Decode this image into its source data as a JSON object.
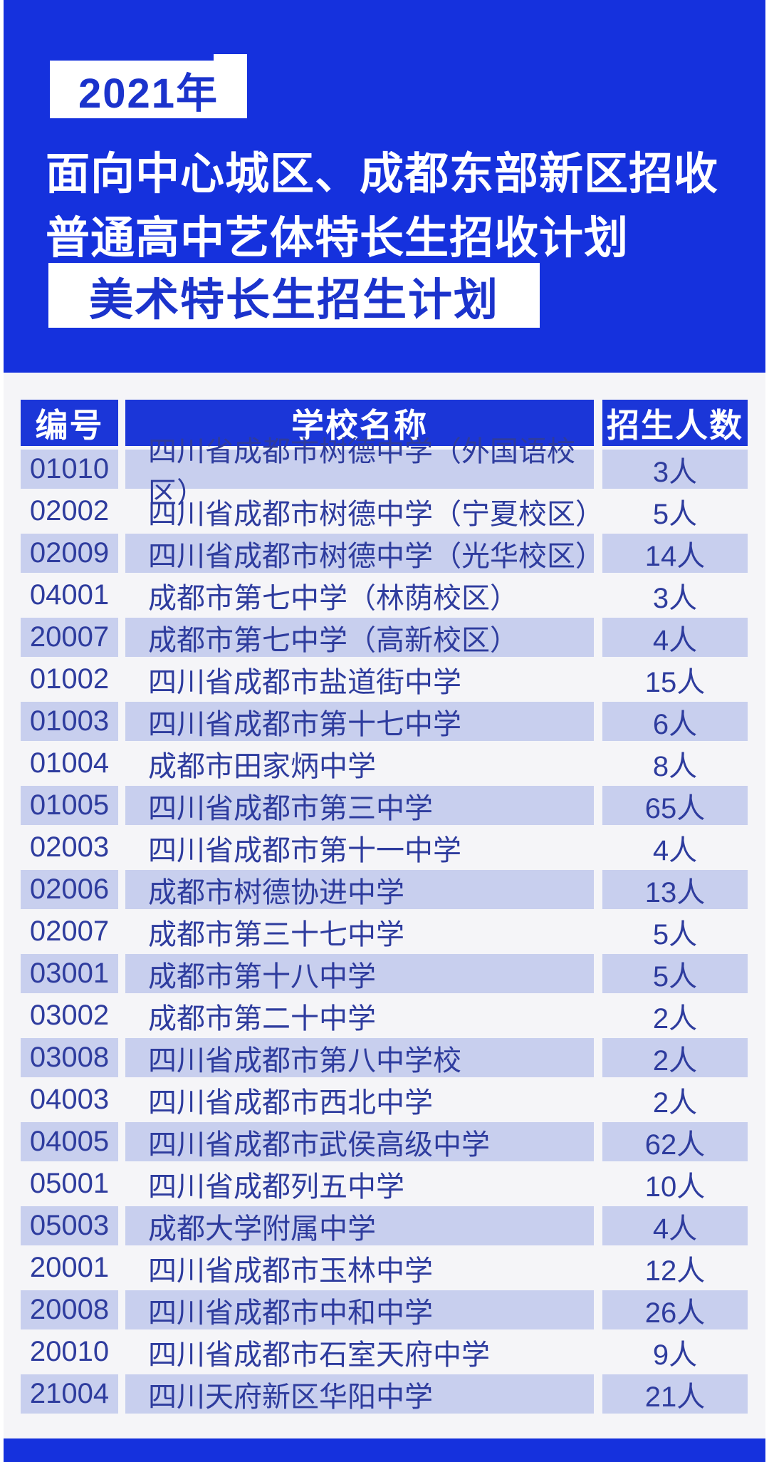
{
  "colors": {
    "hero_blue": "#1531dd",
    "header_cell_blue": "#1b36d8",
    "shaded_row": "#c8cfee",
    "table_text": "#2e3c9e",
    "badge_text_blue": "#1b33cc",
    "content_bg": "#f5f5f8"
  },
  "header": {
    "year_badge": "2021年",
    "title_line1": "面向中心城区、成都东部新区招收",
    "title_line2": "普通高中艺体特长生招收计划",
    "subtitle_badge": "美术特长生招生计划"
  },
  "table": {
    "columns": [
      "编号",
      "学校名称",
      "招生人数"
    ],
    "rows": [
      {
        "code": "01010",
        "school": "四川省成都市树德中学（外国语校区）",
        "count": "3人"
      },
      {
        "code": "02002",
        "school": "四川省成都市树德中学（宁夏校区）",
        "count": "5人"
      },
      {
        "code": "02009",
        "school": "四川省成都市树德中学（光华校区）",
        "count": "14人"
      },
      {
        "code": "04001",
        "school": "成都市第七中学（林荫校区）",
        "count": "3人"
      },
      {
        "code": "20007",
        "school": "成都市第七中学（高新校区）",
        "count": "4人"
      },
      {
        "code": "01002",
        "school": "四川省成都市盐道街中学",
        "count": "15人"
      },
      {
        "code": "01003",
        "school": "四川省成都市第十七中学",
        "count": "6人"
      },
      {
        "code": "01004",
        "school": "成都市田家炳中学",
        "count": "8人"
      },
      {
        "code": "01005",
        "school": "四川省成都市第三中学",
        "count": "65人"
      },
      {
        "code": "02003",
        "school": "四川省成都市第十一中学",
        "count": "4人"
      },
      {
        "code": "02006",
        "school": "成都市树德协进中学",
        "count": "13人"
      },
      {
        "code": "02007",
        "school": "成都市第三十七中学",
        "count": "5人"
      },
      {
        "code": "03001",
        "school": "成都市第十八中学",
        "count": "5人"
      },
      {
        "code": "03002",
        "school": "成都市第二十中学",
        "count": "2人"
      },
      {
        "code": "03008",
        "school": "四川省成都市第八中学校",
        "count": "2人"
      },
      {
        "code": "04003",
        "school": "四川省成都市西北中学",
        "count": "2人"
      },
      {
        "code": "04005",
        "school": "四川省成都市武侯高级中学",
        "count": "62人"
      },
      {
        "code": "05001",
        "school": "四川省成都列五中学",
        "count": "10人"
      },
      {
        "code": "05003",
        "school": "成都大学附属中学",
        "count": "4人"
      },
      {
        "code": "20001",
        "school": "四川省成都市玉林中学",
        "count": "12人"
      },
      {
        "code": "20008",
        "school": "四川省成都市中和中学",
        "count": "26人"
      },
      {
        "code": "20010",
        "school": "四川省成都市石室天府中学",
        "count": "9人"
      },
      {
        "code": "21004",
        "school": "四川天府新区华阳中学",
        "count": "21人"
      }
    ]
  }
}
